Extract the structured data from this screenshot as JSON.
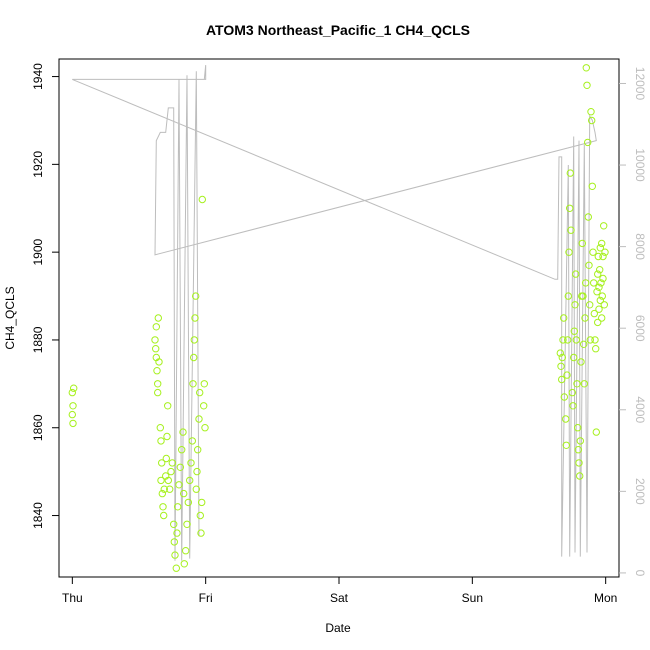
{
  "chart_data": {
    "type": "scatter",
    "title": "ATOM3 Northeast_Pacific_1 CH4_QCLS",
    "xlabel": "Date",
    "ylabel": "CH4_QCLS",
    "x_ticks": [
      "Thu",
      "Fri",
      "Sat",
      "Sun",
      "Mon"
    ],
    "xlim_days": [
      -0.1,
      4.1
    ],
    "y_left_ticks": [
      "1840",
      "1860",
      "1880",
      "1900",
      "1920",
      "1940"
    ],
    "ylim_left": [
      1826,
      1944
    ],
    "y_right_ticks": [
      "0",
      "2000",
      "4000",
      "6000",
      "8000",
      "10000",
      "12000"
    ],
    "ylim_right": [
      -100,
      12600
    ],
    "grid": false,
    "colors": {
      "points": "#a6f01e",
      "altitude_line": "#bdbdbd",
      "axis": "#000000",
      "right_axis": "#bdbdbd"
    },
    "series": [
      {
        "type": "scatter",
        "points": [
          [
            0.0,
            1868
          ],
          [
            0.0,
            1863
          ],
          [
            0.005,
            1865
          ],
          [
            0.01,
            1869
          ],
          [
            0.005,
            1861
          ],
          [
            0.62,
            1880
          ],
          [
            0.625,
            1878
          ],
          [
            0.63,
            1876
          ],
          [
            0.635,
            1873
          ],
          [
            0.64,
            1870
          ],
          [
            0.63,
            1883
          ],
          [
            0.645,
            1885
          ],
          [
            0.65,
            1875
          ],
          [
            0.64,
            1868
          ],
          [
            0.66,
            1860
          ],
          [
            0.665,
            1857
          ],
          [
            0.67,
            1852
          ],
          [
            0.665,
            1848
          ],
          [
            0.675,
            1845
          ],
          [
            0.68,
            1842
          ],
          [
            0.685,
            1840
          ],
          [
            0.69,
            1846
          ],
          [
            0.7,
            1849
          ],
          [
            0.705,
            1853
          ],
          [
            0.71,
            1858
          ],
          [
            0.715,
            1865
          ],
          [
            0.72,
            1848
          ],
          [
            0.73,
            1846
          ],
          [
            0.74,
            1850
          ],
          [
            0.75,
            1852
          ],
          [
            0.76,
            1838
          ],
          [
            0.765,
            1834
          ],
          [
            0.77,
            1831
          ],
          [
            0.78,
            1828
          ],
          [
            0.785,
            1836
          ],
          [
            0.79,
            1842
          ],
          [
            0.8,
            1847
          ],
          [
            0.81,
            1851
          ],
          [
            0.82,
            1855
          ],
          [
            0.83,
            1859
          ],
          [
            0.835,
            1845
          ],
          [
            0.84,
            1829
          ],
          [
            0.85,
            1832
          ],
          [
            0.86,
            1838
          ],
          [
            0.87,
            1843
          ],
          [
            0.88,
            1848
          ],
          [
            0.89,
            1852
          ],
          [
            0.9,
            1857
          ],
          [
            0.905,
            1870
          ],
          [
            0.91,
            1876
          ],
          [
            0.915,
            1880
          ],
          [
            0.92,
            1885
          ],
          [
            0.925,
            1890
          ],
          [
            0.93,
            1846
          ],
          [
            0.935,
            1850
          ],
          [
            0.94,
            1855
          ],
          [
            0.95,
            1862
          ],
          [
            0.955,
            1868
          ],
          [
            0.96,
            1840
          ],
          [
            0.965,
            1836
          ],
          [
            0.97,
            1843
          ],
          [
            0.975,
            1912
          ],
          [
            0.985,
            1865
          ],
          [
            0.99,
            1870
          ],
          [
            0.995,
            1860
          ],
          [
            3.66,
            1877
          ],
          [
            3.665,
            1874
          ],
          [
            3.67,
            1871
          ],
          [
            3.675,
            1876
          ],
          [
            3.68,
            1880
          ],
          [
            3.685,
            1885
          ],
          [
            3.69,
            1867
          ],
          [
            3.7,
            1862
          ],
          [
            3.705,
            1856
          ],
          [
            3.71,
            1872
          ],
          [
            3.715,
            1880
          ],
          [
            3.72,
            1890
          ],
          [
            3.725,
            1900
          ],
          [
            3.73,
            1910
          ],
          [
            3.735,
            1918
          ],
          [
            3.74,
            1905
          ],
          [
            3.75,
            1868
          ],
          [
            3.755,
            1865
          ],
          [
            3.76,
            1876
          ],
          [
            3.765,
            1882
          ],
          [
            3.77,
            1888
          ],
          [
            3.775,
            1895
          ],
          [
            3.78,
            1880
          ],
          [
            3.785,
            1870
          ],
          [
            3.79,
            1860
          ],
          [
            3.795,
            1855
          ],
          [
            3.8,
            1852
          ],
          [
            3.805,
            1849
          ],
          [
            3.81,
            1857
          ],
          [
            3.815,
            1875
          ],
          [
            3.82,
            1890
          ],
          [
            3.825,
            1902
          ],
          [
            3.83,
            1890
          ],
          [
            3.835,
            1879
          ],
          [
            3.84,
            1870
          ],
          [
            3.845,
            1885
          ],
          [
            3.85,
            1893
          ],
          [
            3.855,
            1942
          ],
          [
            3.86,
            1938
          ],
          [
            3.865,
            1925
          ],
          [
            3.87,
            1908
          ],
          [
            3.875,
            1897
          ],
          [
            3.88,
            1888
          ],
          [
            3.885,
            1880
          ],
          [
            3.89,
            1932
          ],
          [
            3.895,
            1930
          ],
          [
            3.9,
            1915
          ],
          [
            3.905,
            1900
          ],
          [
            3.91,
            1893
          ],
          [
            3.915,
            1886
          ],
          [
            3.92,
            1880
          ],
          [
            3.925,
            1878
          ],
          [
            3.93,
            1859
          ],
          [
            3.935,
            1891
          ],
          [
            3.94,
            1895
          ],
          [
            3.945,
            1899
          ],
          [
            3.95,
            1887
          ],
          [
            3.955,
            1896
          ],
          [
            3.96,
            1901
          ],
          [
            3.965,
            1893
          ],
          [
            3.97,
            1885
          ],
          [
            3.975,
            1890
          ],
          [
            3.98,
            1899
          ],
          [
            3.985,
            1906
          ],
          [
            3.99,
            1888
          ],
          [
            3.995,
            1900
          ],
          [
            3.98,
            1894
          ],
          [
            3.97,
            1902
          ],
          [
            3.96,
            1889
          ],
          [
            3.95,
            1892
          ],
          [
            3.94,
            1884
          ]
        ]
      },
      {
        "type": "line",
        "axis": "right",
        "points": [
          [
            0.0,
            12100
          ],
          [
            1.0,
            12100
          ],
          [
            1.0,
            12450
          ],
          [
            0.99,
            12100
          ],
          [
            0.0,
            12100
          ],
          [
            3.62,
            7200
          ],
          [
            3.64,
            7200
          ],
          [
            3.65,
            10200
          ],
          [
            3.67,
            10200
          ],
          [
            3.67,
            400
          ],
          [
            3.72,
            10000
          ],
          [
            3.73,
            400
          ],
          [
            3.76,
            10700
          ],
          [
            3.77,
            500
          ],
          [
            3.8,
            10600
          ],
          [
            3.81,
            400
          ],
          [
            3.84,
            10500
          ],
          [
            3.86,
            500
          ],
          [
            3.88,
            11200
          ],
          [
            3.9,
            11100
          ],
          [
            3.92,
            10800
          ],
          [
            3.93,
            10600
          ],
          [
            0.62,
            7800
          ],
          [
            0.63,
            10600
          ],
          [
            0.66,
            10800
          ],
          [
            0.7,
            10800
          ],
          [
            0.72,
            11400
          ],
          [
            0.76,
            11400
          ],
          [
            0.77,
            300
          ],
          [
            0.8,
            12100
          ],
          [
            0.82,
            300
          ],
          [
            0.86,
            12200
          ],
          [
            0.88,
            350
          ],
          [
            0.93,
            12300
          ],
          [
            0.95,
            900
          ]
        ]
      }
    ]
  }
}
